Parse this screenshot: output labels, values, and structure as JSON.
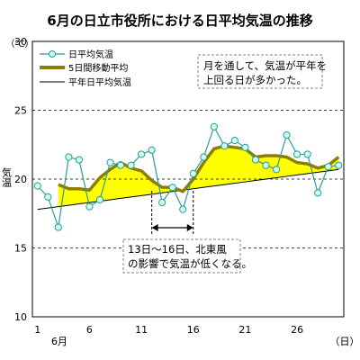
{
  "chart_data": {
    "type": "line",
    "title": "6月の日立市役所における日平均気温の推移",
    "yunit": "（℃）",
    "ylabel": "気温",
    "x_unit": "（日）",
    "x_month_label": "6月",
    "ylim": [
      10,
      30
    ],
    "yticks": [
      10,
      15,
      20,
      25,
      30
    ],
    "xlim": [
      1,
      30
    ],
    "xticks": [
      1,
      6,
      11,
      16,
      21,
      26
    ],
    "grid_y": [
      15,
      20,
      25
    ],
    "x": [
      1,
      2,
      3,
      4,
      5,
      6,
      7,
      8,
      9,
      10,
      11,
      12,
      13,
      14,
      15,
      16,
      17,
      18,
      19,
      20,
      21,
      22,
      23,
      24,
      25,
      26,
      27,
      28,
      29,
      30
    ],
    "series": [
      {
        "name": "日平均気温",
        "values": [
          19.5,
          18.7,
          16.5,
          21.6,
          21.4,
          18.0,
          18.5,
          21.2,
          21.0,
          21.0,
          21.8,
          22.1,
          18.3,
          19.4,
          17.8,
          20.4,
          21.6,
          23.8,
          22.4,
          22.8,
          22.3,
          21.4,
          21.0,
          20.7,
          23.2,
          21.8,
          21.8,
          19.0,
          20.9,
          21.0
        ]
      },
      {
        "name": "5日間移動平均",
        "values": [
          null,
          null,
          19.6,
          19.3,
          19.3,
          19.2,
          20.1,
          20.7,
          21.2,
          20.8,
          20.6,
          19.9,
          19.4,
          19.4,
          19.1,
          20.0,
          21.2,
          22.2,
          22.4,
          22.3,
          22.2,
          21.6,
          21.7,
          21.7,
          21.6,
          21.2,
          21.1,
          20.8,
          21.0,
          21.6
        ]
      },
      {
        "name": "平年日平均気温",
        "values": [
          17.8,
          17.9,
          18.0,
          18.1,
          18.2,
          18.3,
          18.4,
          18.5,
          18.6,
          18.7,
          18.8,
          18.9,
          19.0,
          19.1,
          19.2,
          19.3,
          19.4,
          19.5,
          19.6,
          19.7,
          19.8,
          19.9,
          20.0,
          20.1,
          20.2,
          20.3,
          20.4,
          20.5,
          20.6,
          20.7
        ]
      }
    ],
    "annotations": [
      {
        "text": "月を通して、気温が平年を上回る日が多かった。"
      },
      {
        "text": "13日〜16日、北東風の影響で気温が低くなる。"
      }
    ],
    "legend": "top-left",
    "colors": {
      "daily": "#2f9a9a",
      "moving": "#8c7f00",
      "normal": "#000000",
      "fill": "#ffff00",
      "grid": "#000000",
      "annotation_border": "#808080"
    }
  }
}
